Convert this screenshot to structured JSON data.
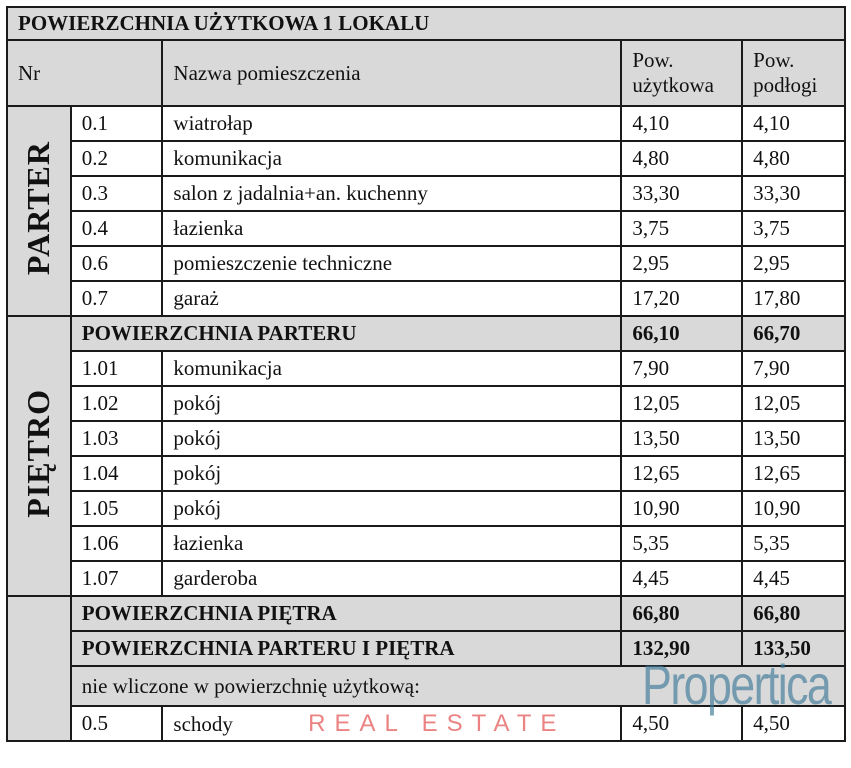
{
  "title": "POWIERZCHNIA UŻYTKOWA 1 LOKALU",
  "headers": {
    "nr": "Nr",
    "name": "Nazwa pomieszczenia",
    "pow_u": "Pow. użytkowa",
    "pow_p": "Pow. podłogi"
  },
  "parter": {
    "label": "PARTER",
    "rows": [
      {
        "nr": "0.1",
        "name": "wiatrołap",
        "u": "4,10",
        "p": "4,10"
      },
      {
        "nr": "0.2",
        "name": "komunikacja",
        "u": "4,80",
        "p": "4,80"
      },
      {
        "nr": "0.3",
        "name": "salon z jadalnia+an. kuchenny",
        "u": "33,30",
        "p": "33,30"
      },
      {
        "nr": "0.4",
        "name": "łazienka",
        "u": "3,75",
        "p": "3,75"
      },
      {
        "nr": "0.6",
        "name": "pomieszczenie techniczne",
        "u": "2,95",
        "p": "2,95"
      },
      {
        "nr": "0.7",
        "name": "garaż",
        "u": "17,20",
        "p": "17,80"
      }
    ]
  },
  "sum_parter": {
    "label": "POWIERZCHNIA PARTERU",
    "u": "66,10",
    "p": "66,70"
  },
  "pietro": {
    "label": "PIĘTRO",
    "rows": [
      {
        "nr": "1.01",
        "name": "komunikacja",
        "u": "7,90",
        "p": "7,90"
      },
      {
        "nr": "1.02",
        "name": "pokój",
        "u": "12,05",
        "p": "12,05"
      },
      {
        "nr": "1.03",
        "name": "pokój",
        "u": "13,50",
        "p": "13,50"
      },
      {
        "nr": "1.04",
        "name": "pokój",
        "u": "12,65",
        "p": "12,65"
      },
      {
        "nr": "1.05",
        "name": "pokój",
        "u": "10,90",
        "p": "10,90"
      },
      {
        "nr": "1.06",
        "name": "łazienka",
        "u": "5,35",
        "p": "5,35"
      },
      {
        "nr": "1.07",
        "name": "garderoba",
        "u": "4,45",
        "p": "4,45"
      }
    ]
  },
  "sum_pietro": {
    "label": "POWIERZCHNIA PIĘTRA",
    "u": "66,80",
    "p": "66,80"
  },
  "sum_total": {
    "label": "POWIERZCHNIA PARTERU I PIĘTRA",
    "u": "132,90",
    "p": "133,50"
  },
  "excluded_label": "nie wliczone w powierzchnię użytkową:",
  "excluded": {
    "nr": "0.5",
    "name": "schody",
    "u": "4,50",
    "p": "4,50"
  },
  "watermark": {
    "brand": "Propertica",
    "tagline": "REAL ESTATE"
  }
}
